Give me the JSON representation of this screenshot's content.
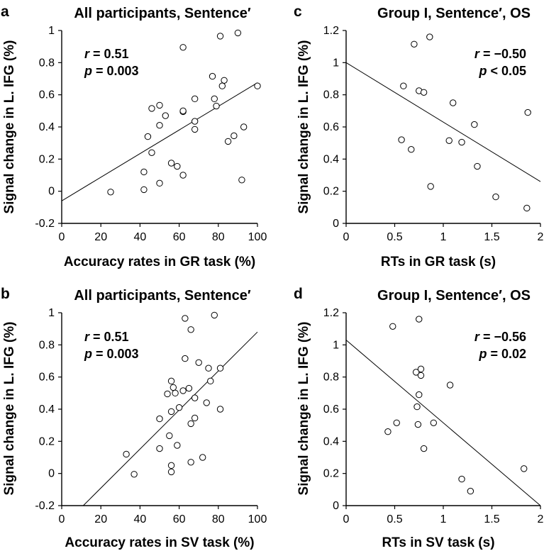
{
  "chart_data": [
    {
      "id": "a",
      "type": "scatter",
      "panel_letter": "a",
      "title": "All participants, Sentence′",
      "xlabel": "Accuracy rates in GR task (%)",
      "ylabel": "Signal change in L. IFG (%)",
      "xlim": [
        0,
        100
      ],
      "ylim": [
        -0.2,
        1
      ],
      "xticks": [
        0,
        20,
        40,
        60,
        80,
        100
      ],
      "yticks": [
        -0.2,
        0,
        0.2,
        0.4,
        0.6,
        0.8,
        1
      ],
      "xtick_labels": [
        "0",
        "20",
        "40",
        "60",
        "80",
        "100"
      ],
      "ytick_labels": [
        "-0.2",
        "0",
        "0.2",
        "0.4",
        "0.6",
        "0.8",
        "1"
      ],
      "stats": {
        "r_label": "r",
        "r_value": " = 0.51",
        "p_label": "p",
        "p_value": " = 0.003",
        "position": "top-left"
      },
      "regression": {
        "x": [
          0,
          100
        ],
        "y": [
          -0.06,
          0.675
        ]
      },
      "points": {
        "x": [
          25,
          42,
          42,
          44,
          46,
          46,
          50,
          50,
          50,
          53,
          56,
          59,
          62,
          62,
          62,
          62,
          68,
          68,
          68,
          77,
          78,
          79,
          81,
          82,
          83,
          85,
          88,
          90,
          92,
          93,
          100
        ],
        "y": [
          -0.005,
          0.01,
          0.12,
          0.34,
          0.24,
          0.515,
          0.05,
          0.41,
          0.535,
          0.47,
          0.175,
          0.155,
          0.1,
          0.495,
          0.5,
          0.895,
          0.385,
          0.435,
          0.575,
          0.715,
          0.575,
          0.53,
          0.965,
          0.655,
          0.69,
          0.31,
          0.345,
          0.985,
          0.07,
          0.4,
          0.655
        ]
      }
    },
    {
      "id": "b",
      "type": "scatter",
      "panel_letter": "b",
      "title": "All participants, Sentence′",
      "xlabel": "Accuracy rates in SV task (%)",
      "ylabel": "Signal change in L. IFG (%)",
      "xlim": [
        0,
        100
      ],
      "ylim": [
        -0.2,
        1
      ],
      "xticks": [
        0,
        20,
        40,
        60,
        80,
        100
      ],
      "yticks": [
        -0.2,
        0,
        0.2,
        0.4,
        0.6,
        0.8,
        1
      ],
      "xtick_labels": [
        "0",
        "20",
        "40",
        "60",
        "80",
        "100"
      ],
      "ytick_labels": [
        "-0.2",
        "0",
        "0.2",
        "0.4",
        "0.6",
        "0.8",
        "1"
      ],
      "stats": {
        "r_label": "r",
        "r_value": " = 0.51",
        "p_label": "p",
        "p_value": " = 0.003",
        "position": "top-left"
      },
      "regression": {
        "x": [
          11,
          100
        ],
        "y": [
          -0.2,
          0.88
        ]
      },
      "points": {
        "x": [
          33,
          37,
          50,
          50,
          54,
          55,
          56,
          56,
          56,
          56,
          57,
          58,
          59,
          60,
          62,
          63,
          63,
          65,
          66,
          66,
          66,
          68,
          68,
          70,
          72,
          74,
          75,
          76,
          78,
          81,
          81
        ],
        "y": [
          0.12,
          -0.005,
          0.34,
          0.155,
          0.495,
          0.235,
          0.05,
          0.01,
          0.575,
          0.385,
          0.535,
          0.5,
          0.175,
          0.41,
          0.515,
          0.715,
          0.965,
          0.53,
          0.31,
          0.07,
          0.895,
          0.345,
          0.47,
          0.69,
          0.1,
          0.44,
          0.655,
          0.575,
          0.985,
          0.655,
          0.4
        ]
      }
    },
    {
      "id": "c",
      "type": "scatter",
      "panel_letter": "c",
      "title": "Group I, Sentence′, OS",
      "xlabel": "RTs in GR task (s)",
      "ylabel": "Signal change in L. IFG (%)",
      "xlim": [
        0,
        2
      ],
      "ylim": [
        0,
        1.2
      ],
      "xticks": [
        0,
        0.5,
        1,
        1.5,
        2
      ],
      "yticks": [
        0,
        0.2,
        0.4,
        0.6,
        0.8,
        1,
        1.2
      ],
      "xtick_labels": [
        "0",
        "0.5",
        "1",
        "1.5",
        "2"
      ],
      "ytick_labels": [
        "0",
        "0.2",
        "0.4",
        "0.6",
        "0.8",
        "1",
        "1.2"
      ],
      "stats": {
        "r_label": "r",
        "r_value": " = −0.50",
        "p_label": "p",
        "p_value": " < 0.05",
        "position": "top-right"
      },
      "regression": {
        "x": [
          0,
          2
        ],
        "y": [
          1.0,
          0.26
        ]
      },
      "points": {
        "x": [
          0.57,
          0.59,
          0.67,
          0.7,
          0.75,
          0.8,
          0.86,
          0.87,
          1.06,
          1.1,
          1.19,
          1.32,
          1.35,
          1.54,
          1.86,
          1.87
        ],
        "y": [
          0.52,
          0.855,
          0.46,
          1.115,
          0.825,
          0.815,
          1.16,
          0.23,
          0.515,
          0.75,
          0.505,
          0.615,
          0.355,
          0.165,
          0.095,
          0.69
        ]
      }
    },
    {
      "id": "d",
      "type": "scatter",
      "panel_letter": "d",
      "title": "Group I, Sentence′, OS",
      "xlabel": "RTs in SV task (s)",
      "ylabel": "Signal change in L. IFG (%)",
      "xlim": [
        0,
        2
      ],
      "ylim": [
        0,
        1.2
      ],
      "xticks": [
        0,
        0.5,
        1,
        1.5,
        2
      ],
      "yticks": [
        0,
        0.2,
        0.4,
        0.6,
        0.8,
        1,
        1.2
      ],
      "xtick_labels": [
        "0",
        "0.5",
        "1",
        "1.5",
        "2"
      ],
      "ytick_labels": [
        "0",
        "0.2",
        "0.4",
        "0.6",
        "0.8",
        "1",
        "1.2"
      ],
      "stats": {
        "r_label": "r",
        "r_value": " = −0.56",
        "p_label": "p",
        "p_value": " = 0.02",
        "position": "top-right"
      },
      "regression": {
        "x": [
          0,
          2
        ],
        "y": [
          1.03,
          0.0
        ]
      },
      "points": {
        "x": [
          0.43,
          0.48,
          0.52,
          0.72,
          0.73,
          0.74,
          0.75,
          0.75,
          0.77,
          0.77,
          0.8,
          0.9,
          1.07,
          1.19,
          1.28,
          1.83
        ],
        "y": [
          0.46,
          1.115,
          0.515,
          0.83,
          0.615,
          0.505,
          1.16,
          0.69,
          0.81,
          0.85,
          0.355,
          0.515,
          0.75,
          0.165,
          0.09,
          0.23
        ]
      }
    }
  ]
}
